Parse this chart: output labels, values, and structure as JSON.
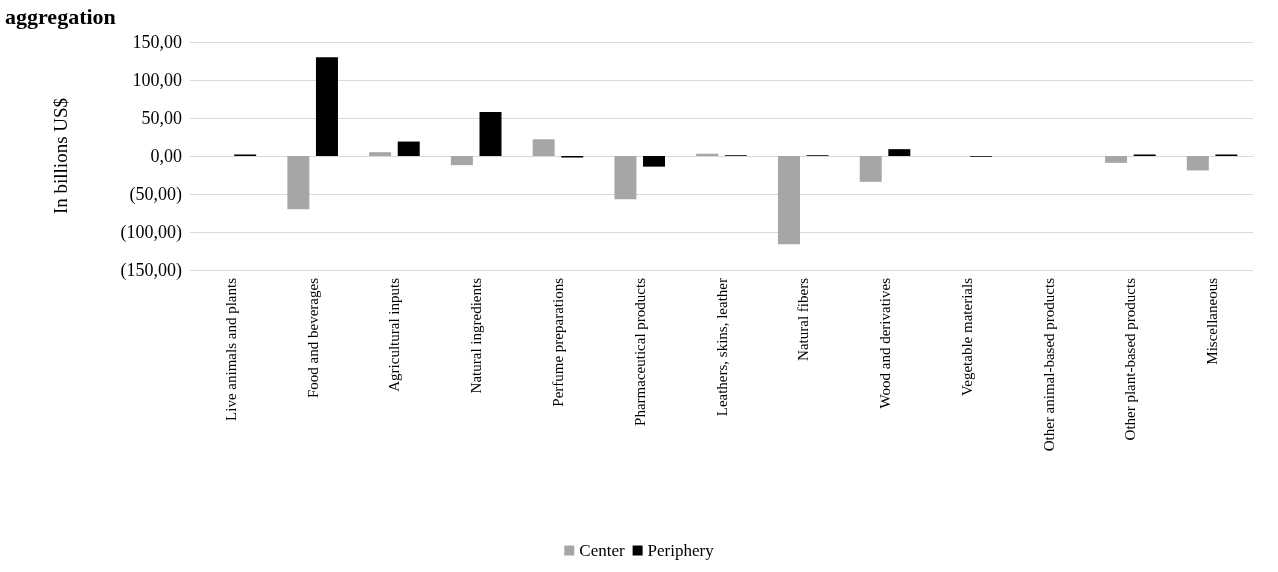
{
  "chart_data": {
    "type": "bar",
    "title": "aggregation",
    "ylabel": "In billions US$",
    "categories": [
      "Live animals and plants",
      "Food and beverages",
      "Agricultural inputs",
      "Natural ingredients",
      "Perfume preparations",
      "Pharmaceutical products",
      "Leathers, skins, leather",
      "Natural fibers",
      "Wood and derivatives",
      "Vegetable materials",
      "Other animal-based products",
      "Other plant-based products",
      "Miscellaneous"
    ],
    "series": [
      {
        "name": "Center",
        "color": "#a6a6a6",
        "values": [
          null,
          -70,
          5,
          -12,
          22,
          -57,
          3,
          -116,
          -34,
          null,
          null,
          -9,
          -19
        ]
      },
      {
        "name": "Periphery",
        "color": "#000000",
        "values": [
          2,
          130,
          19,
          58,
          -2,
          -14,
          1,
          1,
          9,
          -1,
          null,
          2,
          2
        ]
      }
    ],
    "ylim": [
      -150,
      150
    ],
    "yticks": [
      {
        "value": -150,
        "label": "(150,00)"
      },
      {
        "value": -100,
        "label": "(100,00)"
      },
      {
        "value": -50,
        "label": "(50,00)"
      },
      {
        "value": 0,
        "label": "0,00"
      },
      {
        "value": 50,
        "label": "50,00"
      },
      {
        "value": 100,
        "label": "100,00"
      },
      {
        "value": 150,
        "label": "150,00"
      }
    ],
    "grid": "y",
    "legend": "bottom"
  }
}
